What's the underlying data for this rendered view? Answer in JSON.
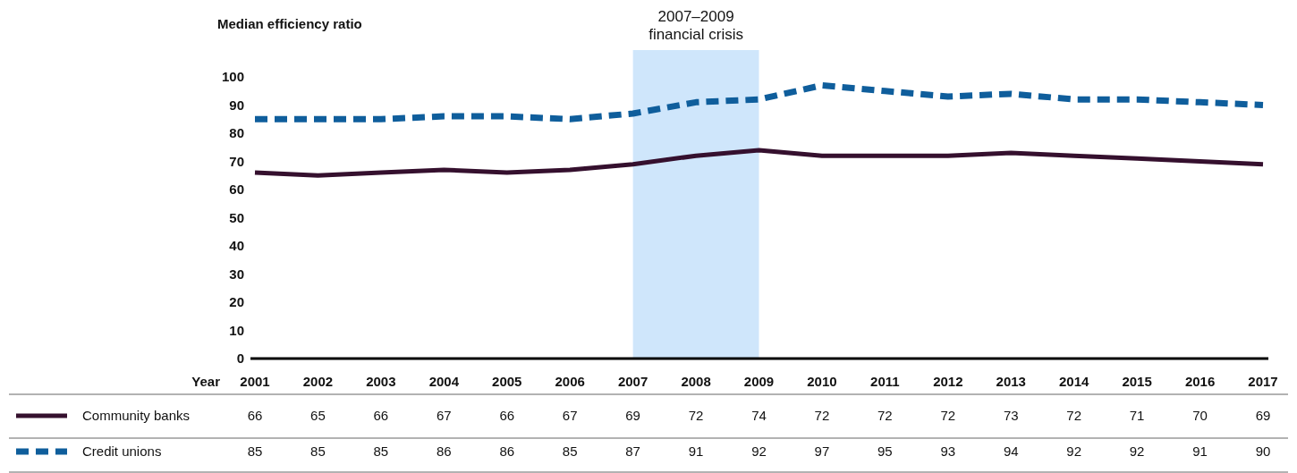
{
  "chart_data": {
    "type": "line",
    "ylabel": "Median efficiency ratio",
    "xlabel": "Year",
    "categories": [
      "2001",
      "2002",
      "2003",
      "2004",
      "2005",
      "2006",
      "2007",
      "2008",
      "2009",
      "2010",
      "2011",
      "2012",
      "2013",
      "2014",
      "2015",
      "2016",
      "2017"
    ],
    "series": [
      {
        "name": "Community banks",
        "color": "#35102e",
        "line_style": "solid",
        "values": [
          66,
          65,
          66,
          67,
          66,
          67,
          69,
          72,
          74,
          72,
          72,
          72,
          73,
          72,
          71,
          70,
          69
        ]
      },
      {
        "name": "Credit unions",
        "color": "#0f5e9c",
        "line_style": "dashed",
        "values": [
          85,
          85,
          85,
          86,
          86,
          85,
          87,
          91,
          92,
          97,
          95,
          93,
          94,
          92,
          92,
          91,
          90
        ]
      }
    ],
    "ylim": [
      0,
      100
    ],
    "yticks": [
      0,
      10,
      20,
      30,
      40,
      50,
      60,
      70,
      80,
      90,
      100
    ],
    "bands": [
      {
        "axis": "x",
        "from": "2007",
        "to": "2009",
        "label": "2007–2009\nfinancial crisis",
        "color": "#cfe6fb"
      }
    ],
    "grid": false,
    "legend": "bottom",
    "marker": "none",
    "data_labels": true
  }
}
